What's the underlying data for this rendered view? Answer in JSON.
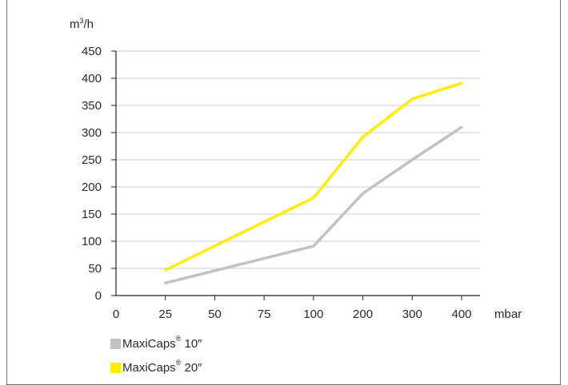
{
  "chart_data": {
    "type": "line",
    "ylabel_base": "m",
    "ylabel_sup": "3",
    "ylabel_tail": "/h",
    "xlabel": "mbar",
    "categories": [
      "0",
      "25",
      "50",
      "75",
      "100",
      "200",
      "300",
      "400"
    ],
    "yticks": [
      "0",
      "50",
      "100",
      "150",
      "200",
      "250",
      "300",
      "350",
      "400",
      "450"
    ],
    "ylim": [
      0,
      450
    ],
    "grid": true,
    "series": [
      {
        "name": "MaxiCaps® 10″",
        "name_base": "MaxiCaps",
        "name_sup": "®",
        "name_tail": " 10″",
        "color": "#c2c2c2",
        "x": [
          "25",
          "100",
          "200",
          "300",
          "400"
        ],
        "values": [
          23,
          91,
          188,
          250,
          310
        ]
      },
      {
        "name": "MaxiCaps® 20″",
        "name_base": "MaxiCaps",
        "name_sup": "®",
        "name_tail": " 20″",
        "color": "#ffee00",
        "x": [
          "25",
          "100",
          "200",
          "300",
          "400"
        ],
        "values": [
          47,
          180,
          292,
          362,
          391
        ]
      }
    ],
    "legend_position": "bottom-left"
  }
}
